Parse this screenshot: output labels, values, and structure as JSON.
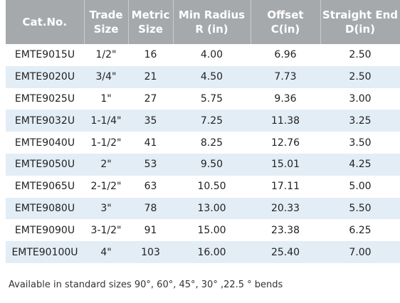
{
  "table": {
    "headers": [
      "Cat.No.",
      "Trade Size",
      "Metric Size",
      "Min Radius R (in)",
      "Offset C(in)",
      "Straight End D(in)"
    ],
    "rows": [
      [
        "EMTE9015U",
        "1/2\"",
        "16",
        "4.00",
        "6.96",
        "2.50"
      ],
      [
        "EMTE9020U",
        "3/4\"",
        "21",
        "4.50",
        "7.73",
        "2.50"
      ],
      [
        "EMTE9025U",
        "1\"",
        "27",
        "5.75",
        "9.36",
        "3.00"
      ],
      [
        "EMTE9032U",
        "1-1/4\"",
        "35",
        "7.25",
        "11.38",
        "3.25"
      ],
      [
        "EMTE9040U",
        "1-1/2\"",
        "41",
        "8.25",
        "12.76",
        "3.50"
      ],
      [
        "EMTE9050U",
        "2\"",
        "53",
        "9.50",
        "15.01",
        "4.25"
      ],
      [
        "EMTE9065U",
        "2-1/2\"",
        "63",
        "10.50",
        "17.11",
        "5.00"
      ],
      [
        "EMTE9080U",
        "3\"",
        "78",
        "13.00",
        "20.33",
        "5.50"
      ],
      [
        "EMTE9090U",
        "3-1/2\"",
        "91",
        "15.00",
        "23.38",
        "6.25"
      ],
      [
        "EMTE90100U",
        "4\"",
        "103",
        "16.00",
        "25.40",
        "7.00"
      ]
    ]
  },
  "footnote": "Available in standard sizes 90°, 60°, 45°, 30° ,22.5 ° bends"
}
